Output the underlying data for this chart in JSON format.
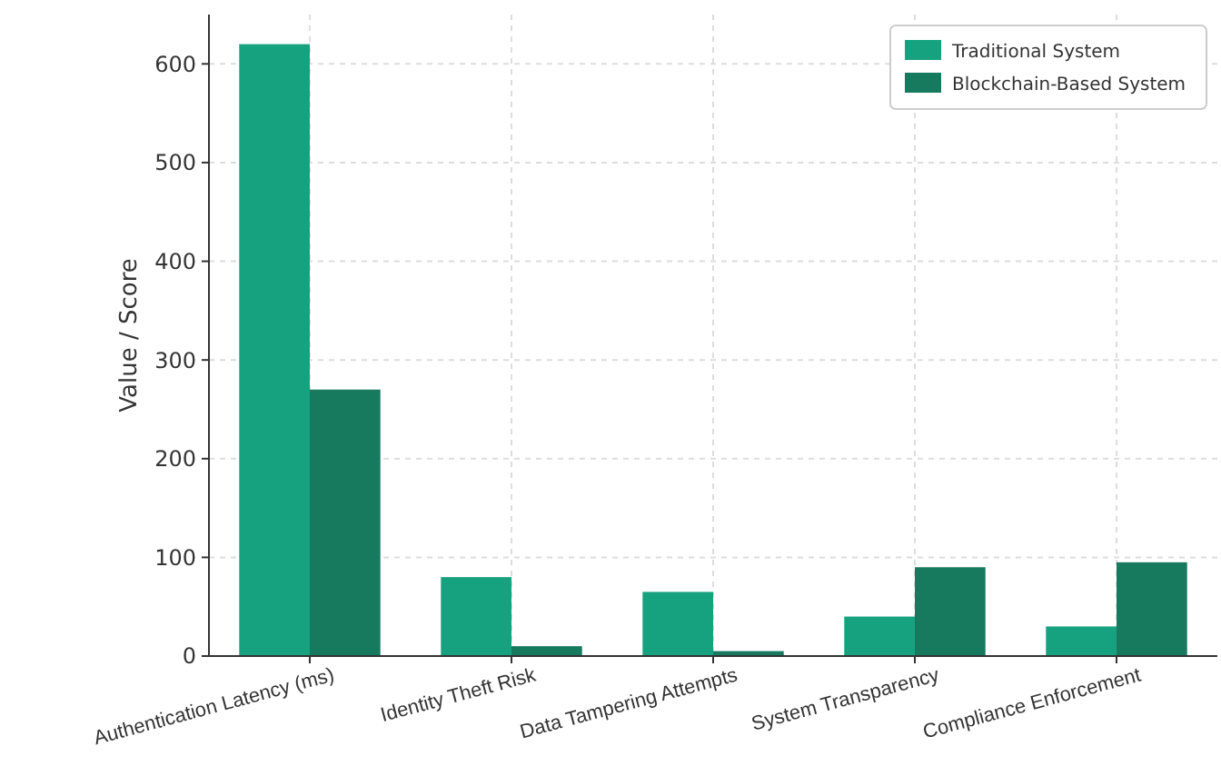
{
  "chart_data": {
    "type": "bar",
    "ylabel": "Value / Score",
    "categories": [
      "Authentication Latency (ms)",
      "Identity Theft Risk",
      "Data Tampering Attempts",
      "System Transparency",
      "Compliance Enforcement"
    ],
    "series": [
      {
        "name": "Traditional System",
        "color": "#17a27f",
        "values": [
          620,
          80,
          65,
          40,
          30
        ]
      },
      {
        "name": "Blockchain-Based System",
        "color": "#177a5f",
        "values": [
          270,
          10,
          5,
          90,
          95
        ]
      }
    ],
    "ylim": [
      0,
      650
    ],
    "yticks": [
      0,
      100,
      200,
      300,
      400,
      500,
      600
    ],
    "grid": true,
    "legend": "top right"
  }
}
